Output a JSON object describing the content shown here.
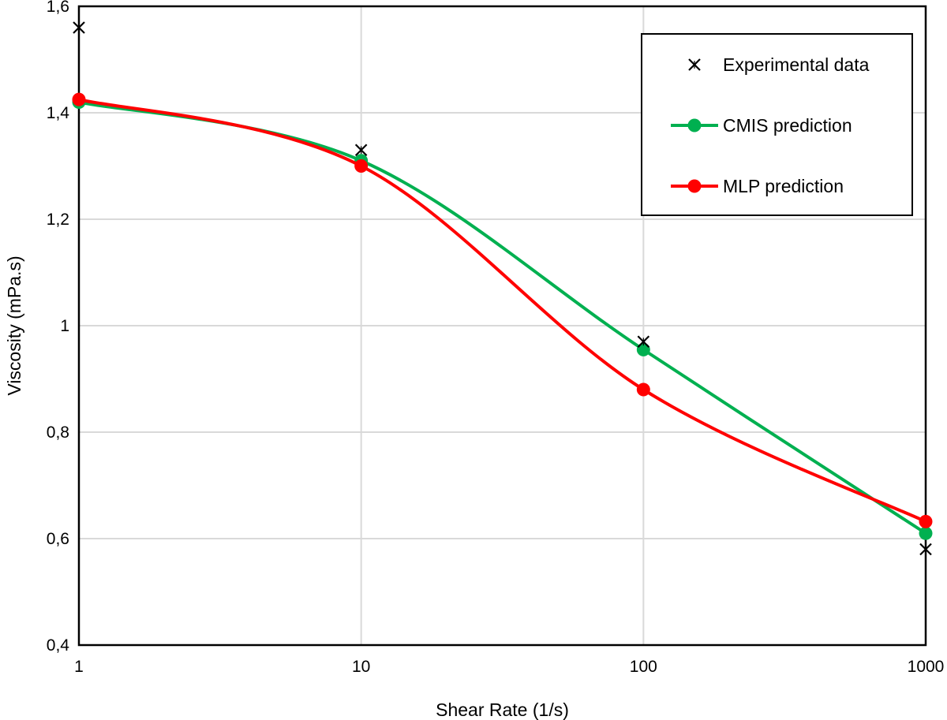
{
  "chart_data": {
    "type": "line",
    "xlabel": "Shear Rate (1/s)",
    "ylabel": "Viscosity (mPa.s)",
    "x_scale": "log",
    "xlim": [
      1,
      1000
    ],
    "ylim": [
      0.4,
      1.6
    ],
    "x_ticks": [
      1,
      10,
      100,
      1000
    ],
    "x_tick_labels": [
      "1",
      "10",
      "100",
      "1000"
    ],
    "y_ticks": [
      0.4,
      0.6,
      0.8,
      1.0,
      1.2,
      1.4,
      1.6
    ],
    "y_tick_labels": [
      "0,4",
      "0,6",
      "0,8",
      "1",
      "1,2",
      "1,4",
      "1,6"
    ],
    "grid": true,
    "legend_position": "top-right",
    "series": [
      {
        "name": "Experimental data",
        "marker": "asterisk",
        "line": false,
        "color": "#000000",
        "x": [
          1,
          10,
          100,
          1000
        ],
        "values": [
          1.56,
          1.33,
          0.97,
          0.58
        ]
      },
      {
        "name": "CMIS prediction",
        "marker": "circle",
        "line": true,
        "color": "#00b050",
        "x": [
          1,
          10,
          100,
          1000
        ],
        "values": [
          1.42,
          1.31,
          0.955,
          0.61
        ]
      },
      {
        "name": "MLP prediction",
        "marker": "circle",
        "line": true,
        "color": "#ff0000",
        "x": [
          1,
          10,
          100,
          1000
        ],
        "values": [
          1.425,
          1.3,
          0.88,
          0.632
        ]
      }
    ]
  }
}
